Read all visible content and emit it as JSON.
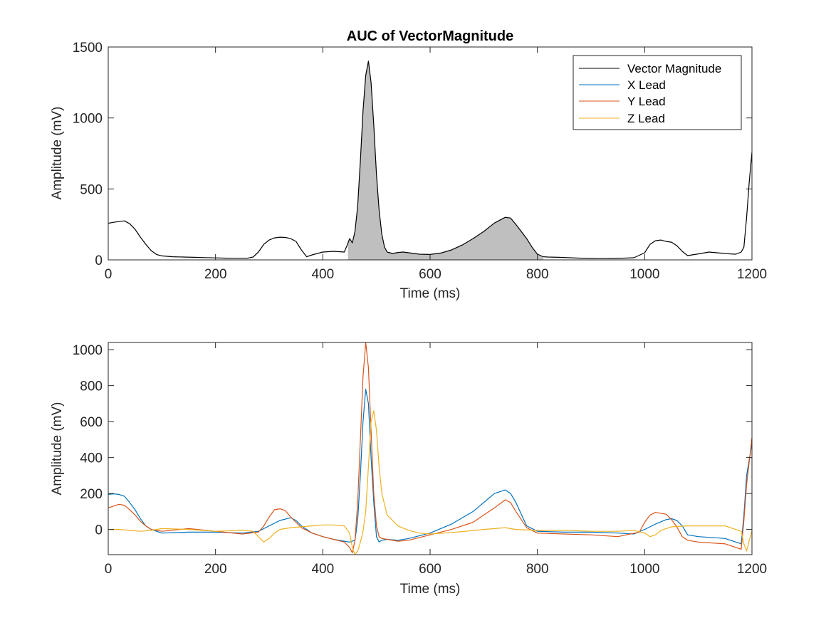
{
  "chart_data": [
    {
      "type": "area",
      "title": "AUC of VectorMagnitude",
      "xlabel": "Time (ms)",
      "ylabel": "Amplitude (mV)",
      "xlim": [
        0,
        1200
      ],
      "ylim": [
        0,
        1500
      ],
      "xticks": [
        0,
        200,
        400,
        600,
        800,
        1000,
        1200
      ],
      "yticks": [
        0,
        500,
        1000,
        1500
      ],
      "grid": false,
      "legend": {
        "placement": "top-right",
        "entries": [
          "Vector Magnitude",
          "X Lead",
          "Y Lead",
          "Z Lead"
        ],
        "colors": [
          "#000000",
          "#0072BD",
          "#D95319",
          "#EDB120"
        ]
      },
      "shaded_region": {
        "x_start": 447,
        "x_end": 811,
        "color": "#bfbfbf"
      },
      "series": [
        {
          "name": "Vector Magnitude",
          "color": "#000000",
          "x": [
            0,
            10,
            20,
            30,
            40,
            50,
            60,
            70,
            80,
            90,
            100,
            120,
            140,
            160,
            180,
            200,
            220,
            240,
            260,
            270,
            280,
            290,
            300,
            310,
            320,
            330,
            340,
            350,
            360,
            370,
            380,
            400,
            420,
            440,
            445,
            450,
            455,
            460,
            465,
            470,
            475,
            480,
            485,
            490,
            495,
            500,
            505,
            510,
            515,
            520,
            530,
            540,
            550,
            560,
            580,
            600,
            620,
            640,
            660,
            680,
            700,
            720,
            740,
            750,
            760,
            770,
            780,
            790,
            800,
            811,
            820,
            840,
            860,
            880,
            900,
            920,
            940,
            960,
            980,
            1000,
            1010,
            1020,
            1030,
            1040,
            1050,
            1060,
            1070,
            1080,
            1100,
            1120,
            1140,
            1160,
            1170,
            1180,
            1185,
            1190,
            1195,
            1200
          ],
          "y": [
            258,
            265,
            270,
            275,
            255,
            215,
            160,
            110,
            65,
            38,
            28,
            22,
            20,
            18,
            16,
            14,
            12,
            11,
            12,
            20,
            55,
            110,
            140,
            155,
            160,
            158,
            150,
            130,
            70,
            22,
            35,
            55,
            60,
            55,
            100,
            150,
            120,
            200,
            380,
            700,
            1050,
            1300,
            1400,
            1250,
            950,
            600,
            350,
            180,
            90,
            55,
            45,
            52,
            55,
            50,
            40,
            38,
            48,
            70,
            105,
            150,
            200,
            260,
            300,
            295,
            250,
            200,
            150,
            90,
            40,
            22,
            20,
            18,
            15,
            12,
            10,
            9,
            10,
            12,
            15,
            50,
            110,
            135,
            140,
            130,
            125,
            100,
            60,
            30,
            42,
            55,
            48,
            42,
            40,
            55,
            90,
            300,
            550,
            760
          ]
        }
      ]
    },
    {
      "type": "line",
      "title": "",
      "xlabel": "Time (ms)",
      "ylabel": "Amplitude (mV)",
      "xlim": [
        0,
        1200
      ],
      "ylim": [
        -140,
        1040
      ],
      "xticks": [
        0,
        200,
        400,
        600,
        800,
        1000,
        1200
      ],
      "yticks": [
        0,
        200,
        400,
        600,
        800,
        1000
      ],
      "grid": false,
      "series": [
        {
          "name": "X Lead",
          "color": "#0072BD",
          "x": [
            0,
            10,
            20,
            30,
            40,
            50,
            60,
            70,
            80,
            100,
            150,
            200,
            250,
            280,
            300,
            320,
            340,
            350,
            360,
            380,
            400,
            420,
            440,
            450,
            460,
            465,
            470,
            475,
            480,
            485,
            490,
            495,
            500,
            505,
            510,
            520,
            540,
            560,
            600,
            640,
            680,
            700,
            720,
            740,
            750,
            760,
            780,
            800,
            850,
            900,
            950,
            980,
            1000,
            1020,
            1040,
            1050,
            1060,
            1070,
            1080,
            1100,
            1150,
            1180,
            1185,
            1190,
            1200
          ],
          "y": [
            195,
            198,
            195,
            185,
            150,
            110,
            60,
            20,
            0,
            -20,
            -15,
            -15,
            -20,
            -10,
            20,
            50,
            65,
            50,
            20,
            -20,
            -40,
            -55,
            -65,
            -70,
            -60,
            50,
            300,
            600,
            780,
            700,
            400,
            150,
            -40,
            -70,
            -60,
            -55,
            -60,
            -50,
            -20,
            30,
            100,
            150,
            200,
            220,
            200,
            150,
            20,
            -10,
            -15,
            -15,
            -20,
            -25,
            0,
            30,
            55,
            60,
            50,
            20,
            -30,
            -40,
            -50,
            -80,
            80,
            300,
            480
          ]
        },
        {
          "name": "Y Lead",
          "color": "#D95319",
          "x": [
            0,
            10,
            20,
            30,
            40,
            50,
            60,
            70,
            80,
            100,
            150,
            200,
            250,
            280,
            290,
            300,
            310,
            320,
            330,
            340,
            360,
            380,
            400,
            420,
            440,
            450,
            455,
            460,
            465,
            470,
            475,
            480,
            485,
            490,
            495,
            500,
            505,
            510,
            520,
            540,
            560,
            600,
            640,
            680,
            700,
            720,
            740,
            750,
            760,
            780,
            800,
            850,
            900,
            950,
            990,
            1000,
            1010,
            1020,
            1040,
            1050,
            1060,
            1070,
            1080,
            1100,
            1150,
            1180,
            1185,
            1190,
            1200
          ],
          "y": [
            120,
            130,
            140,
            135,
            110,
            80,
            45,
            20,
            0,
            -10,
            5,
            -10,
            -25,
            -15,
            20,
            70,
            110,
            115,
            105,
            70,
            10,
            -20,
            -40,
            -55,
            -70,
            -100,
            -130,
            -60,
            150,
            500,
            850,
            1040,
            900,
            550,
            200,
            20,
            -40,
            -50,
            -55,
            -65,
            -60,
            -30,
            0,
            40,
            80,
            120,
            165,
            150,
            100,
            10,
            -20,
            -25,
            -30,
            -40,
            -15,
            40,
            80,
            95,
            85,
            55,
            15,
            -40,
            -60,
            -70,
            -80,
            -110,
            50,
            250,
            510
          ]
        },
        {
          "name": "Z Lead",
          "color": "#EDB120",
          "x": [
            0,
            20,
            40,
            60,
            80,
            100,
            150,
            200,
            250,
            270,
            280,
            290,
            300,
            310,
            320,
            340,
            360,
            380,
            400,
            420,
            440,
            450,
            455,
            460,
            465,
            470,
            475,
            480,
            485,
            490,
            495,
            500,
            505,
            510,
            520,
            540,
            560,
            580,
            600,
            650,
            700,
            740,
            760,
            800,
            850,
            900,
            950,
            980,
            1000,
            1010,
            1020,
            1030,
            1050,
            1080,
            1100,
            1150,
            1180,
            1185,
            1190,
            1195,
            1200
          ],
          "y": [
            0,
            0,
            -5,
            -10,
            -5,
            5,
            0,
            -10,
            -5,
            -10,
            -40,
            -70,
            -50,
            -20,
            0,
            10,
            15,
            20,
            25,
            25,
            20,
            -20,
            -100,
            -140,
            -120,
            -70,
            -10,
            100,
            350,
            600,
            660,
            550,
            350,
            200,
            80,
            20,
            -5,
            -20,
            -25,
            -15,
            0,
            10,
            0,
            -5,
            -5,
            -10,
            -10,
            -5,
            -20,
            -40,
            -30,
            -5,
            15,
            20,
            20,
            20,
            -10,
            -80,
            -120,
            -60,
            -10
          ]
        }
      ]
    }
  ]
}
